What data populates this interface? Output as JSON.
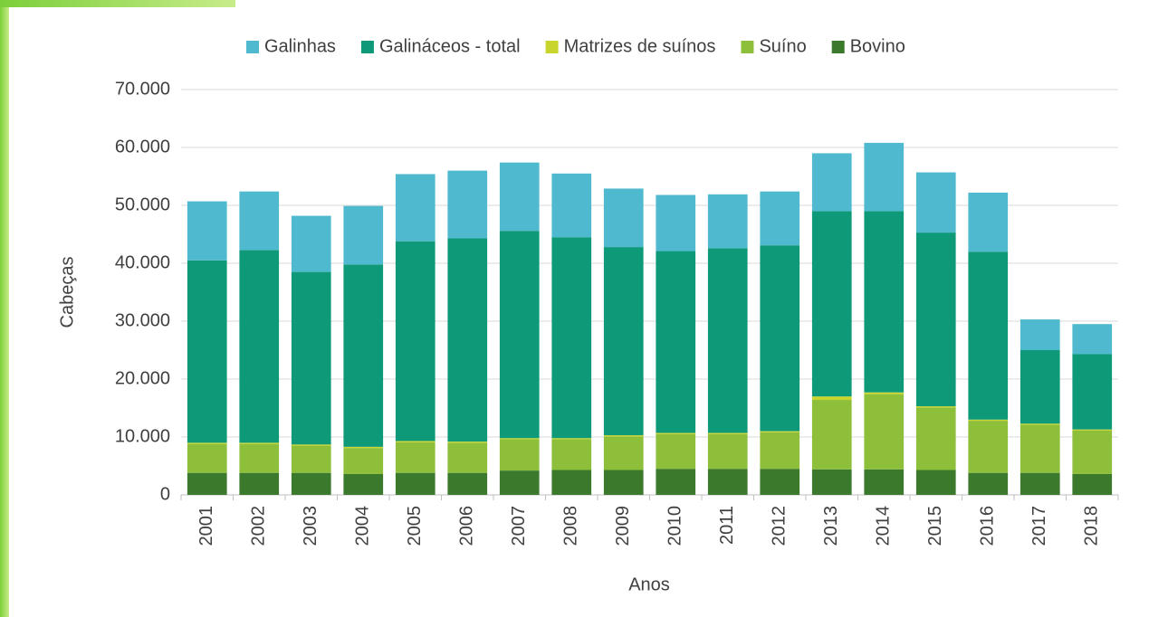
{
  "chart_data": {
    "type": "stacked_bar",
    "categories": [
      "2001",
      "2002",
      "2003",
      "2004",
      "2005",
      "2006",
      "2007",
      "2008",
      "2009",
      "2010",
      "2011",
      "2012",
      "2013",
      "2014",
      "2015",
      "2016",
      "2017",
      "2018"
    ],
    "series": [
      {
        "name": "Galinhas",
        "color": "#4fb9cf",
        "values": [
          10200,
          10100,
          9700,
          10100,
          11600,
          11700,
          11800,
          11000,
          10100,
          9700,
          9300,
          9300,
          10000,
          11800,
          10400,
          10200,
          5300,
          5200
        ]
      },
      {
        "name": "Galináceos - total",
        "color": "#0e9a78",
        "values": [
          31500,
          33300,
          29800,
          31500,
          34500,
          35100,
          35800,
          34700,
          32500,
          31400,
          31900,
          32100,
          32000,
          31300,
          30000,
          29000,
          12700,
          13000
        ]
      },
      {
        "name": "Matrizes de suínos",
        "color": "#c8d52c",
        "values": [
          200,
          200,
          200,
          200,
          200,
          200,
          200,
          200,
          200,
          200,
          200,
          200,
          600,
          300,
          200,
          200,
          200,
          200
        ]
      },
      {
        "name": "Suíno",
        "color": "#8dbf3b",
        "values": [
          5000,
          5000,
          4700,
          4500,
          5300,
          5200,
          5400,
          5300,
          5800,
          6000,
          6000,
          6300,
          12000,
          13000,
          10800,
          9000,
          8300,
          7500
        ]
      },
      {
        "name": "Bovino",
        "color": "#3b7a2c",
        "values": [
          3800,
          3800,
          3800,
          3600,
          3800,
          3800,
          4200,
          4300,
          4300,
          4500,
          4500,
          4500,
          4400,
          4400,
          4300,
          3800,
          3800,
          3600
        ]
      }
    ],
    "ylabel": "Cabeças",
    "xlabel": "Anos",
    "ylim": [
      0,
      70000
    ],
    "yticks": [
      0,
      {
        "value": 10000,
        "label": "10.000"
      },
      {
        "value": 20000,
        "label": "20.000"
      },
      {
        "value": 30000,
        "label": "30.000"
      },
      {
        "value": 40000,
        "label": "40.000"
      },
      {
        "value": 50000,
        "label": "50.000"
      },
      {
        "value": 60000,
        "label": "60.000"
      },
      {
        "value": 70000,
        "label": "70.000"
      }
    ],
    "grid": true,
    "legend": "top"
  }
}
